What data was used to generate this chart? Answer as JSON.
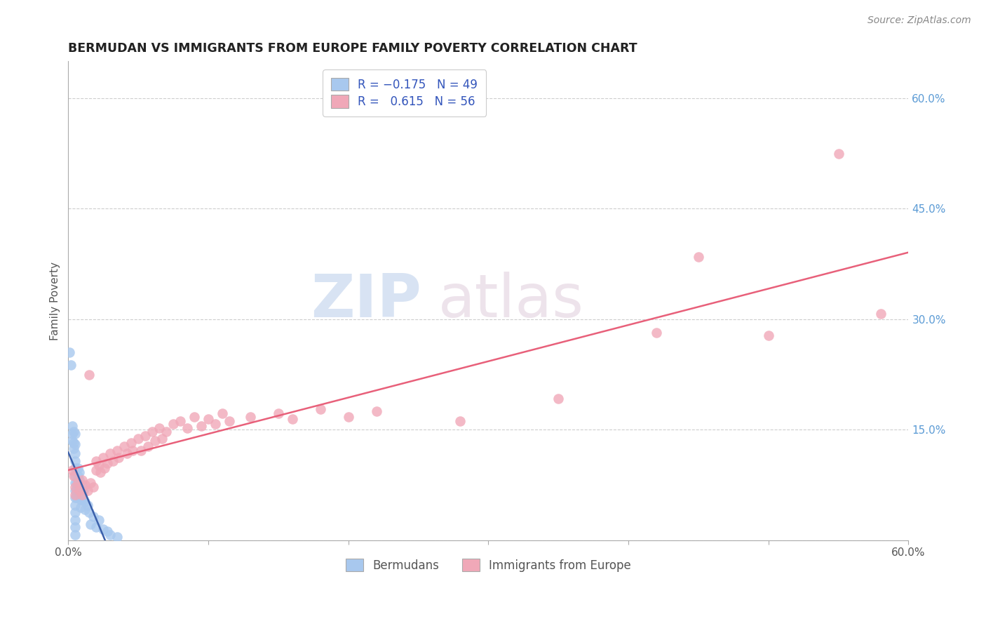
{
  "title": "BERMUDAN VS IMMIGRANTS FROM EUROPE FAMILY POVERTY CORRELATION CHART",
  "source_text": "Source: ZipAtlas.com",
  "ylabel": "Family Poverty",
  "x_min": 0.0,
  "x_max": 0.6,
  "y_min": 0.0,
  "y_max": 0.65,
  "y_ticks_right": [
    0.6,
    0.45,
    0.3,
    0.15,
    0.0
  ],
  "y_tick_labels_right": [
    "60.0%",
    "45.0%",
    "30.0%",
    "15.0%",
    ""
  ],
  "grid_color": "#c8c8c8",
  "legend_label1": "Bermudans",
  "legend_label2": "Immigrants from Europe",
  "blue_color": "#a8c8ee",
  "blue_line_color": "#3a5faa",
  "pink_color": "#f0a8b8",
  "pink_line_color": "#e8607a",
  "blue_scatter": [
    [
      0.001,
      0.255
    ],
    [
      0.002,
      0.238
    ],
    [
      0.003,
      0.155
    ],
    [
      0.003,
      0.145
    ],
    [
      0.003,
      0.135
    ],
    [
      0.004,
      0.148
    ],
    [
      0.004,
      0.132
    ],
    [
      0.004,
      0.125
    ],
    [
      0.005,
      0.145
    ],
    [
      0.005,
      0.13
    ],
    [
      0.005,
      0.118
    ],
    [
      0.005,
      0.108
    ],
    [
      0.005,
      0.098
    ],
    [
      0.005,
      0.088
    ],
    [
      0.005,
      0.078
    ],
    [
      0.005,
      0.068
    ],
    [
      0.005,
      0.058
    ],
    [
      0.005,
      0.048
    ],
    [
      0.005,
      0.038
    ],
    [
      0.005,
      0.028
    ],
    [
      0.005,
      0.018
    ],
    [
      0.005,
      0.008
    ],
    [
      0.006,
      0.078
    ],
    [
      0.006,
      0.068
    ],
    [
      0.006,
      0.058
    ],
    [
      0.007,
      0.098
    ],
    [
      0.007,
      0.088
    ],
    [
      0.007,
      0.075
    ],
    [
      0.008,
      0.092
    ],
    [
      0.008,
      0.082
    ],
    [
      0.008,
      0.065
    ],
    [
      0.009,
      0.055
    ],
    [
      0.009,
      0.045
    ],
    [
      0.01,
      0.075
    ],
    [
      0.01,
      0.062
    ],
    [
      0.011,
      0.068
    ],
    [
      0.011,
      0.055
    ],
    [
      0.012,
      0.052
    ],
    [
      0.012,
      0.042
    ],
    [
      0.014,
      0.048
    ],
    [
      0.015,
      0.038
    ],
    [
      0.016,
      0.022
    ],
    [
      0.018,
      0.032
    ],
    [
      0.02,
      0.018
    ],
    [
      0.022,
      0.028
    ],
    [
      0.025,
      0.015
    ],
    [
      0.028,
      0.012
    ],
    [
      0.03,
      0.008
    ],
    [
      0.035,
      0.005
    ]
  ],
  "pink_scatter": [
    [
      0.003,
      0.095
    ],
    [
      0.004,
      0.088
    ],
    [
      0.005,
      0.072
    ],
    [
      0.005,
      0.062
    ],
    [
      0.007,
      0.078
    ],
    [
      0.008,
      0.068
    ],
    [
      0.01,
      0.082
    ],
    [
      0.01,
      0.062
    ],
    [
      0.012,
      0.075
    ],
    [
      0.014,
      0.068
    ],
    [
      0.015,
      0.225
    ],
    [
      0.016,
      0.078
    ],
    [
      0.018,
      0.072
    ],
    [
      0.02,
      0.108
    ],
    [
      0.02,
      0.095
    ],
    [
      0.022,
      0.102
    ],
    [
      0.023,
      0.092
    ],
    [
      0.025,
      0.112
    ],
    [
      0.026,
      0.098
    ],
    [
      0.028,
      0.105
    ],
    [
      0.03,
      0.118
    ],
    [
      0.032,
      0.108
    ],
    [
      0.035,
      0.122
    ],
    [
      0.036,
      0.112
    ],
    [
      0.04,
      0.128
    ],
    [
      0.042,
      0.118
    ],
    [
      0.045,
      0.132
    ],
    [
      0.046,
      0.122
    ],
    [
      0.05,
      0.138
    ],
    [
      0.052,
      0.122
    ],
    [
      0.055,
      0.142
    ],
    [
      0.057,
      0.128
    ],
    [
      0.06,
      0.148
    ],
    [
      0.062,
      0.135
    ],
    [
      0.065,
      0.152
    ],
    [
      0.067,
      0.138
    ],
    [
      0.07,
      0.148
    ],
    [
      0.075,
      0.158
    ],
    [
      0.08,
      0.162
    ],
    [
      0.085,
      0.152
    ],
    [
      0.09,
      0.168
    ],
    [
      0.095,
      0.155
    ],
    [
      0.1,
      0.165
    ],
    [
      0.105,
      0.158
    ],
    [
      0.11,
      0.172
    ],
    [
      0.115,
      0.162
    ],
    [
      0.13,
      0.168
    ],
    [
      0.15,
      0.172
    ],
    [
      0.16,
      0.165
    ],
    [
      0.18,
      0.178
    ],
    [
      0.2,
      0.168
    ],
    [
      0.22,
      0.175
    ],
    [
      0.28,
      0.162
    ],
    [
      0.35,
      0.192
    ],
    [
      0.42,
      0.282
    ],
    [
      0.45,
      0.385
    ],
    [
      0.5,
      0.278
    ],
    [
      0.55,
      0.525
    ],
    [
      0.58,
      0.308
    ]
  ]
}
